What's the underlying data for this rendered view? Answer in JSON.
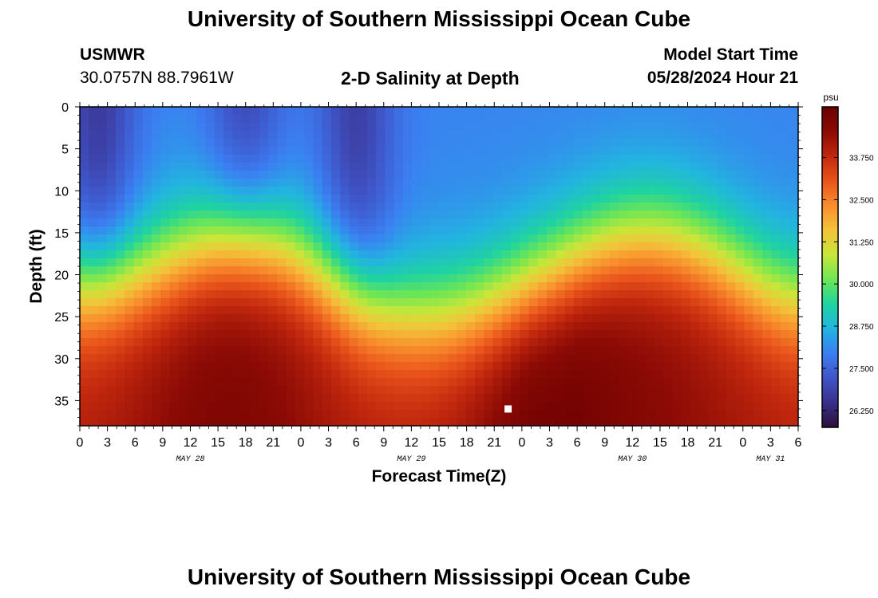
{
  "header": {
    "title": "University of Southern Mississippi Ocean Cube",
    "station_code": "USMWR",
    "station_coords": "30.0757N  88.7961W",
    "subtitle": "2-D Salinity at Depth",
    "model_start_label": "Model Start Time",
    "model_start_value": "05/28/2024 Hour 21"
  },
  "footer": {
    "title": "University of Southern Mississippi Ocean Cube"
  },
  "chart_data": {
    "type": "heatmap",
    "title": "2-D Salinity at Depth",
    "xlabel": "Forecast Time(Z)",
    "ylabel": "Depth (ft)",
    "x_range_hours": [
      0,
      78
    ],
    "x_tick_labels": [
      "0",
      "3",
      "6",
      "9",
      "12",
      "15",
      "18",
      "21",
      "0",
      "3",
      "6",
      "9",
      "12",
      "15",
      "18",
      "21",
      "0",
      "3",
      "6",
      "9",
      "12",
      "15",
      "18",
      "21",
      "0",
      "3",
      "6"
    ],
    "x_tick_step_hours": 3,
    "date_labels": [
      {
        "label": "MAY 28",
        "hour": 12
      },
      {
        "label": "MAY 29",
        "hour": 36
      },
      {
        "label": "MAY 30",
        "hour": 60
      },
      {
        "label": "MAY 31",
        "hour": 75
      }
    ],
    "y_range_ft": [
      0,
      38
    ],
    "y_inverted": true,
    "y_ticks": [
      0,
      5,
      10,
      15,
      20,
      25,
      30,
      35
    ],
    "colorbar": {
      "unit": "psu",
      "range": [
        25.75,
        35.25
      ],
      "ticks": [
        "26.250",
        "27.500",
        "28.750",
        "30.000",
        "31.250",
        "32.500",
        "33.750"
      ],
      "tick_values": [
        26.25,
        27.5,
        28.75,
        30.0,
        31.25,
        32.5,
        33.75
      ],
      "colors": [
        "#2a0f3a",
        "#3a2f8a",
        "#3f55c8",
        "#3b7ef2",
        "#22b4e0",
        "#1fd3a0",
        "#6ee654",
        "#c9e639",
        "#f3c33a",
        "#f88e2c",
        "#e9541b",
        "#c1270d",
        "#8b0a05",
        "#6a0000"
      ]
    },
    "salinity_profile": {
      "description_units": "psu",
      "surface_value_range": [
        26.3,
        28.6
      ],
      "bottom_value_range": [
        33.6,
        35.1
      ]
    },
    "marker": {
      "hour": 46.5,
      "depth_ft": 36
    }
  }
}
